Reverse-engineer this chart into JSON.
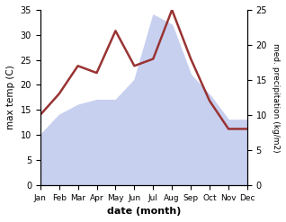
{
  "months": [
    "Jan",
    "Feb",
    "Mar",
    "Apr",
    "May",
    "Jun",
    "Jul",
    "Aug",
    "Sep",
    "Oct",
    "Nov",
    "Dec"
  ],
  "month_indices": [
    0,
    1,
    2,
    3,
    4,
    5,
    6,
    7,
    8,
    9,
    10,
    11
  ],
  "max_temp": [
    10,
    14,
    16,
    17,
    17,
    21,
    34,
    32,
    22,
    18,
    13,
    13
  ],
  "med_precip": [
    10,
    13,
    17,
    16,
    22,
    17,
    18,
    25,
    18,
    12,
    8,
    8
  ],
  "temp_fill_color": "#c8d0f0",
  "precip_color": "#993333",
  "temp_ylim": [
    0,
    35
  ],
  "precip_ylim": [
    0,
    25
  ],
  "temp_yticks": [
    0,
    5,
    10,
    15,
    20,
    25,
    30,
    35
  ],
  "precip_yticks": [
    0,
    5,
    10,
    15,
    20,
    25
  ],
  "xlabel": "date (month)",
  "ylabel_left": "max temp (C)",
  "ylabel_right": "med. precipitation (kg/m2)"
}
